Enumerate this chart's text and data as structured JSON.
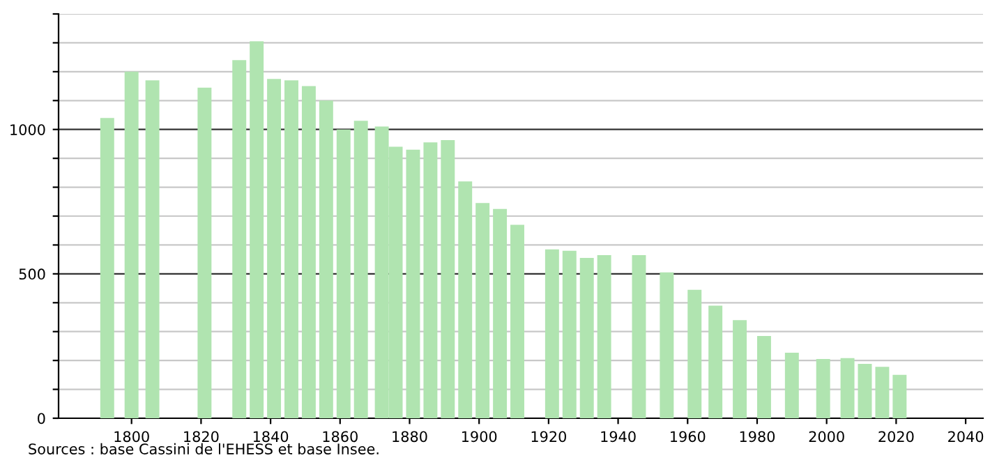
{
  "chart_data": {
    "type": "bar",
    "x": [
      1793,
      1800,
      1806,
      1821,
      1831,
      1836,
      1841,
      1846,
      1851,
      1856,
      1861,
      1866,
      1872,
      1876,
      1881,
      1886,
      1891,
      1896,
      1901,
      1906,
      1911,
      1921,
      1926,
      1931,
      1936,
      1946,
      1954,
      1962,
      1968,
      1975,
      1982,
      1990,
      1999,
      2006,
      2011,
      2016,
      2021
    ],
    "values": [
      1040,
      1200,
      1170,
      1145,
      1240,
      1305,
      1175,
      1170,
      1150,
      1100,
      1000,
      1030,
      1010,
      940,
      930,
      955,
      963,
      820,
      745,
      725,
      670,
      585,
      580,
      555,
      565,
      565,
      505,
      445,
      390,
      340,
      285,
      227,
      205,
      208,
      188,
      178,
      150
    ],
    "color": "#b0e4b0",
    "xlim": [
      1779,
      2045
    ],
    "xticks": [
      1800,
      1820,
      1840,
      1860,
      1880,
      1900,
      1920,
      1940,
      1960,
      1980,
      2000,
      2020,
      2040
    ],
    "ylim": [
      0,
      1400
    ],
    "yticks": [
      0,
      {
        "value": 100,
        "label": null
      },
      {
        "value": 200,
        "label": null
      },
      {
        "value": 300,
        "label": null
      },
      {
        "value": 400,
        "label": null
      },
      500,
      {
        "value": 600,
        "label": null
      },
      {
        "value": 700,
        "label": null
      },
      {
        "value": 800,
        "label": null
      },
      {
        "value": 900,
        "label": null
      },
      1000,
      {
        "value": 1100,
        "label": null
      },
      {
        "value": 1200,
        "label": null
      },
      {
        "value": 1300,
        "label": null
      },
      {
        "value": 1400,
        "label": null
      }
    ],
    "grid": "y",
    "annotations": [
      "Sources : base Cassini de l'EHESS et base Insee."
    ]
  }
}
